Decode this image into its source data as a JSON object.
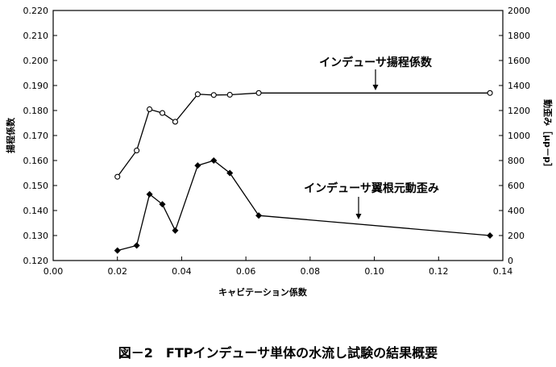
{
  "chart_data": {
    "type": "line",
    "caption": "図－2　FTPインデューサ単体の水流し試験の結果概要",
    "xlabel": "キャビテーション係数",
    "ylabel_left": "揚程係数",
    "ylabel_right": "動歪み［μp－p］",
    "xlim": [
      0.0,
      0.14
    ],
    "ylim_left": [
      0.12,
      0.22
    ],
    "ylim_right": [
      0,
      2000
    ],
    "x_ticks": [
      "0.00",
      "0.02",
      "0.04",
      "0.06",
      "0.08",
      "0.10",
      "0.12",
      "0.14"
    ],
    "y_left_ticks": [
      "0.120",
      "0.130",
      "0.140",
      "0.150",
      "0.160",
      "0.170",
      "0.180",
      "0.190",
      "0.200",
      "0.210",
      "0.220"
    ],
    "y_right_ticks": [
      "0",
      "200",
      "400",
      "600",
      "800",
      "1000",
      "1200",
      "1400",
      "1600",
      "1800",
      "2000"
    ],
    "grid": false,
    "series": [
      {
        "name": "インデューサ揚程係数",
        "axis": "left",
        "marker": "circle-open",
        "x": [
          0.02,
          0.026,
          0.03,
          0.034,
          0.038,
          0.045,
          0.05,
          0.055,
          0.064,
          0.136
        ],
        "y": [
          0.1535,
          0.164,
          0.1805,
          0.179,
          0.1755,
          0.1865,
          0.1862,
          0.1863,
          0.187,
          0.187
        ]
      },
      {
        "name": "インデューサ翼根元動歪み",
        "axis": "right",
        "marker": "diamond-filled",
        "x": [
          0.02,
          0.026,
          0.03,
          0.034,
          0.038,
          0.045,
          0.05,
          0.055,
          0.064,
          0.136
        ],
        "y": [
          80,
          120,
          530,
          450,
          240,
          760,
          800,
          700,
          360,
          200
        ]
      }
    ],
    "annotations": [
      {
        "text": "インデューサ揚程係数",
        "series": 0
      },
      {
        "text": "インデューサ翼根元動歪み",
        "series": 1
      }
    ]
  }
}
